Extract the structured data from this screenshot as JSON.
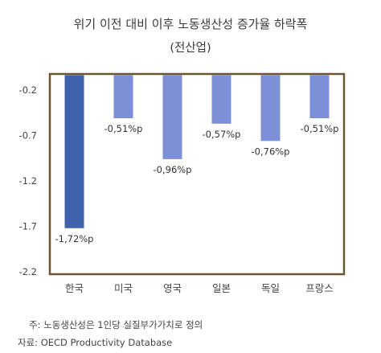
{
  "chart_data": {
    "type": "bar",
    "title": "위기 이전 대비 이후 노동생산성 증가율 하락폭",
    "subtitle": "(전산업)",
    "categories": [
      "한국",
      "미국",
      "영국",
      "일본",
      "독일",
      "프랑스"
    ],
    "values": [
      -1.72,
      -0.51,
      -0.96,
      -0.57,
      -0.76,
      -0.51
    ],
    "value_labels": [
      "-1,72%p",
      "-0,51%p",
      "-0,96%p",
      "-0,57%p",
      "-0,76%p",
      "-0,51%p"
    ],
    "yticks": [
      -0.2,
      -0.7,
      -1.2,
      -1.7,
      -2.2
    ],
    "ytick_labels": [
      "-0.2",
      "-0.7",
      "-1.2",
      "-1.7",
      "-2.2"
    ],
    "ylim": [
      -2.2,
      -0.2
    ],
    "xlabel": "",
    "ylabel": "",
    "grid": false,
    "highlight_color": "#3f63ad",
    "bar_color": "#7d8fd6",
    "frame_color": "#6b5634"
  },
  "footnotes": {
    "note": "주: 노동생산성은 1인당 실질부가가치로 정의",
    "source": "자료: OECD Productivity Database"
  }
}
